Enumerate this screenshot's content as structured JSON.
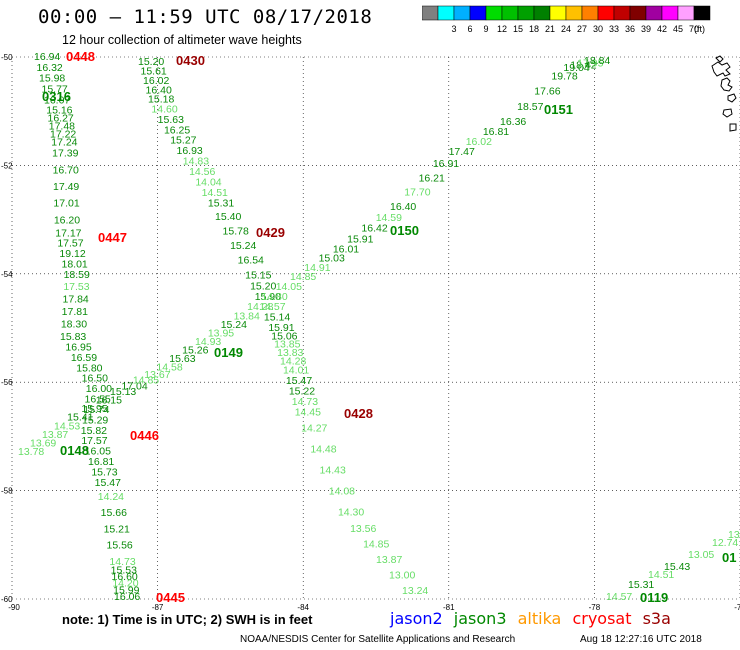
{
  "title": "00:00 – 11:59 UTC 08/17/2018",
  "subtitle": "12 hour collection of altimeter wave heights",
  "footnote": "note: 1) Time is in UTC; 2) SWH is in feet",
  "credit": "NOAA/NESDIS Center for Satellite Applications and Research",
  "timestamp": "Aug 18 12:27:16 UTC 2018",
  "satellites": [
    {
      "name": "jason2",
      "color": "#0000ff"
    },
    {
      "name": "jason3",
      "color": "#008800"
    },
    {
      "name": "altika",
      "color": "#ff9900"
    },
    {
      "name": "cryosat",
      "color": "#ff0000"
    },
    {
      "name": "s3a",
      "color": "#990000"
    }
  ],
  "legend": {
    "unit": "(ft)",
    "bins": [
      {
        "label": "",
        "color": "#808080"
      },
      {
        "label": "3",
        "color": "#00ffff"
      },
      {
        "label": "6",
        "color": "#00b0ff"
      },
      {
        "label": "9",
        "color": "#0000ff"
      },
      {
        "label": "12",
        "color": "#00dd00"
      },
      {
        "label": "15",
        "color": "#00c000"
      },
      {
        "label": "18",
        "color": "#00a000"
      },
      {
        "label": "21",
        "color": "#008000"
      },
      {
        "label": "24",
        "color": "#ffff00"
      },
      {
        "label": "27",
        "color": "#ffc000"
      },
      {
        "label": "30",
        "color": "#ff8000"
      },
      {
        "label": "33",
        "color": "#ff0000"
      },
      {
        "label": "36",
        "color": "#c00000"
      },
      {
        "label": "39",
        "color": "#800000"
      },
      {
        "label": "42",
        "color": "#a000a0"
      },
      {
        "label": "45",
        "color": "#ff00ff"
      },
      {
        "label": "70",
        "color": "#ffa0ff"
      },
      {
        "label": "",
        "color": "#000000"
      }
    ]
  },
  "chart_data": {
    "type": "scatter",
    "xlim": [
      -90,
      -75
    ],
    "ylim": [
      -60,
      -50
    ],
    "xticks": [
      -90,
      -87,
      -84,
      -81,
      -78,
      -75
    ],
    "yticks": [
      -50,
      -52,
      -54,
      -56,
      -58,
      -60
    ],
    "grid": "dotted",
    "passes": [
      {
        "label": "0448",
        "color": "#ff0000",
        "sat": "cryosat"
      },
      {
        "label": "0316",
        "color": "#008800",
        "sat": "jason3"
      },
      {
        "label": "0447",
        "color": "#ff0000",
        "sat": "cryosat"
      },
      {
        "label": "0446",
        "color": "#ff0000",
        "sat": "cryosat"
      },
      {
        "label": "0445",
        "color": "#ff0000",
        "sat": "cryosat"
      },
      {
        "label": "0430",
        "color": "#990000",
        "sat": "s3a"
      },
      {
        "label": "0429",
        "color": "#990000",
        "sat": "s3a"
      },
      {
        "label": "0428",
        "color": "#990000",
        "sat": "s3a"
      },
      {
        "label": "0151",
        "color": "#008800",
        "sat": "jason3"
      },
      {
        "label": "0150",
        "color": "#008800",
        "sat": "jason3"
      },
      {
        "label": "0149",
        "color": "#008800",
        "sat": "jason3"
      },
      {
        "label": "0148",
        "color": "#008800",
        "sat": "jason3"
      },
      {
        "label": "0119",
        "color": "#008800",
        "sat": "jason3"
      },
      {
        "label": "01",
        "color": "#008800",
        "sat": "jason3"
      }
    ],
    "track_a": {
      "values": [
        "16.94",
        "16.32",
        "15.98",
        "15.77",
        "16.07",
        "15.16",
        "16.27",
        "17.48",
        "17.22",
        "17.24",
        "17.39",
        "16.70",
        "17.49",
        "17.01",
        "16.20",
        "17.17",
        "17.57",
        "19.12",
        "18.01",
        "18.59",
        "17.53",
        "17.84",
        "17.81",
        "18.30",
        "15.83",
        "16.95",
        "16.59",
        "15.80",
        "16.50",
        "16.00",
        "16.55",
        "15.74",
        "15.29",
        "15.82",
        "17.57",
        "16.05",
        "16.81",
        "15.73",
        "15.47",
        "14.24",
        "15.66",
        "15.21",
        "15.56",
        "14.73",
        "15.53",
        "16.60",
        "14.20",
        "15.99",
        "16.06"
      ],
      "colors": [
        "d",
        "d",
        "d",
        "d",
        "d",
        "d",
        "d",
        "d",
        "d",
        "d",
        "d",
        "d",
        "d",
        "d",
        "d",
        "d",
        "d",
        "d",
        "d",
        "d",
        "l",
        "d",
        "d",
        "d",
        "d",
        "d",
        "d",
        "d",
        "d",
        "d",
        "d",
        "d",
        "d",
        "d",
        "d",
        "d",
        "d",
        "d",
        "d",
        "l",
        "d",
        "d",
        "d",
        "l",
        "d",
        "d",
        "l",
        "d",
        "d"
      ]
    },
    "track_b": {
      "values": [
        "15.20",
        "15.61",
        "16.02",
        "16.40",
        "15.18",
        "14.60",
        "15.63",
        "16.25",
        "15.27",
        "16.93",
        "14.83",
        "14.56",
        "14.04",
        "14.51",
        "15.31",
        "15.40",
        "15.78",
        "15.24",
        "16.54",
        "15.15",
        "15.20",
        "15.90",
        "14.57",
        "15.14",
        "15.91",
        "15.06",
        "13.85",
        "13.83",
        "14.28",
        "14.01",
        "15.47",
        "15.22",
        "14.73",
        "14.45",
        "14.27",
        "14.48",
        "14.43",
        "14.08",
        "14.30",
        "13.56",
        "14.85",
        "13.87",
        "13.00",
        "13.24"
      ],
      "colors": [
        "d",
        "d",
        "d",
        "d",
        "d",
        "l",
        "d",
        "d",
        "d",
        "d",
        "l",
        "l",
        "l",
        "l",
        "d",
        "d",
        "d",
        "d",
        "d",
        "d",
        "d",
        "d",
        "l",
        "d",
        "d",
        "d",
        "l",
        "l",
        "l",
        "l",
        "d",
        "d",
        "l",
        "l",
        "l",
        "l",
        "l",
        "l",
        "l",
        "l",
        "l",
        "l",
        "l",
        "l"
      ]
    },
    "track_c": {
      "values": [
        "13.78",
        "13.69",
        "13.87",
        "14.53",
        "15.41",
        "15.95",
        "16.15",
        "15.13",
        "17.04",
        "14.85",
        "13.67",
        "14.58",
        "15.63",
        "15.26",
        "14.93",
        "13.95",
        "15.24",
        "13.84",
        "14.28",
        "14.80",
        "14.05",
        "14.85",
        "14.91",
        "15.03",
        "16.01",
        "15.91",
        "16.42",
        "14.59",
        "16.40",
        "17.70",
        "16.21",
        "16.91",
        "17.47",
        "16.02",
        "16.81",
        "16.36",
        "18.57",
        "17.66",
        "19.78",
        "19.04",
        "18.42",
        "17.95",
        "18.84"
      ],
      "colors": [
        "l",
        "l",
        "l",
        "l",
        "d",
        "d",
        "d",
        "d",
        "d",
        "l",
        "l",
        "l",
        "d",
        "d",
        "l",
        "l",
        "d",
        "l",
        "l",
        "l",
        "l",
        "l",
        "l",
        "d",
        "d",
        "d",
        "d",
        "l",
        "d",
        "l",
        "d",
        "d",
        "d",
        "l",
        "d",
        "d",
        "d",
        "d",
        "d",
        "d",
        "d",
        "l",
        "d"
      ]
    },
    "track_d": {
      "values": [
        "14.57",
        "15.31",
        "14.51",
        "15.43",
        "13.05",
        "12.74",
        "13.24"
      ],
      "colors": [
        "l",
        "d",
        "l",
        "d",
        "l",
        "l",
        "l"
      ]
    }
  }
}
